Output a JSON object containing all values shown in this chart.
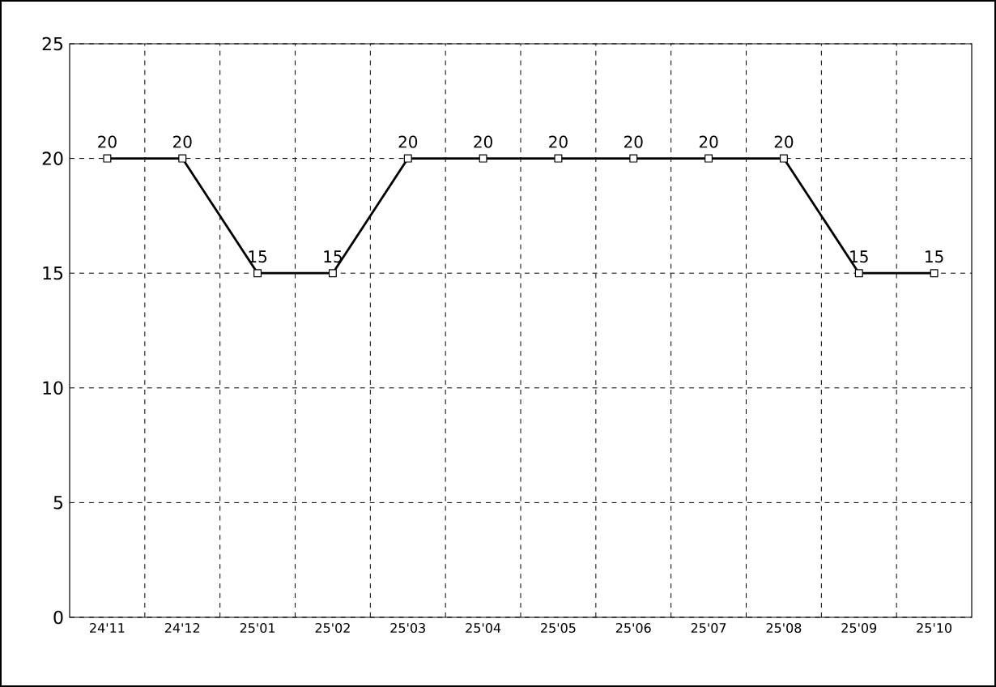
{
  "chart_data": {
    "type": "line",
    "categories": [
      "24'11",
      "24'12",
      "25'01",
      "25'02",
      "25'03",
      "25'04",
      "25'05",
      "25'06",
      "25'07",
      "25'08",
      "25'09",
      "25'10"
    ],
    "values": [
      20,
      20,
      15,
      15,
      20,
      20,
      20,
      20,
      20,
      20,
      15,
      15
    ],
    "color": "#000000",
    "ylim": [
      0,
      25
    ],
    "yticks": [
      0,
      5,
      10,
      15,
      20,
      25
    ],
    "grid": true,
    "marker": "square",
    "line_style": "solid",
    "data_labels": true
  }
}
